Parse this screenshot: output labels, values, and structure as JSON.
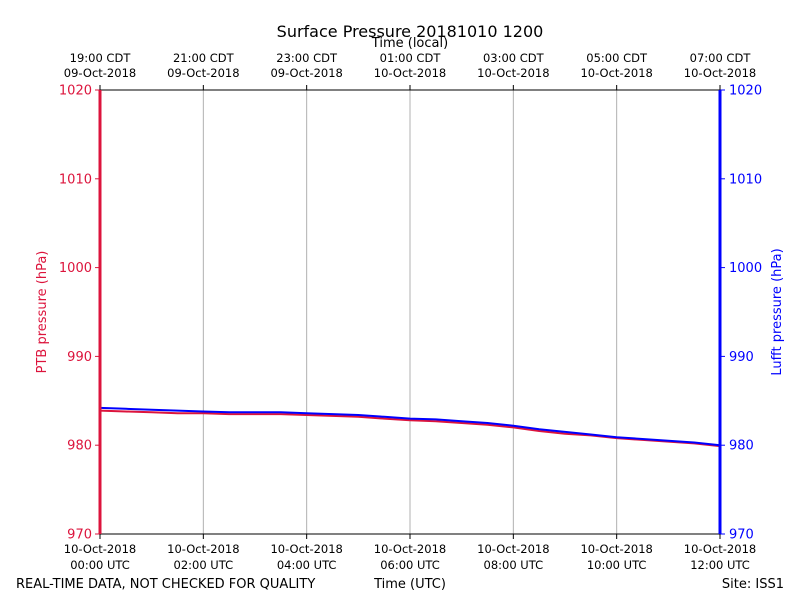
{
  "chart_data": {
    "type": "line",
    "title": "Surface Pressure 20181010 1200",
    "top_axis_label": "Time (local)",
    "xlabel": "Time (UTC)",
    "ylabel_left": "PTB pressure (hPa)",
    "ylabel_right": "Lufft pressure (hPa)",
    "footer_left": "REAL-TIME DATA, NOT CHECKED FOR QUALITY",
    "footer_right": "Site: ISS1",
    "xlim_hours": [
      0,
      12
    ],
    "ylim": [
      970,
      1020
    ],
    "yticks": [
      970,
      980,
      990,
      1000,
      1010,
      1020
    ],
    "grid": "vertical",
    "bottom_ticks": [
      {
        "hour": 0,
        "date": "10-Oct-2018",
        "time": "00:00 UTC"
      },
      {
        "hour": 2,
        "date": "10-Oct-2018",
        "time": "02:00 UTC"
      },
      {
        "hour": 4,
        "date": "10-Oct-2018",
        "time": "04:00 UTC"
      },
      {
        "hour": 6,
        "date": "10-Oct-2018",
        "time": "06:00 UTC"
      },
      {
        "hour": 8,
        "date": "10-Oct-2018",
        "time": "08:00 UTC"
      },
      {
        "hour": 10,
        "date": "10-Oct-2018",
        "time": "10:00 UTC"
      },
      {
        "hour": 12,
        "date": "10-Oct-2018",
        "time": "12:00 UTC"
      }
    ],
    "top_ticks": [
      {
        "hour": 0,
        "time": "19:00 CDT",
        "date": "09-Oct-2018"
      },
      {
        "hour": 2,
        "time": "21:00 CDT",
        "date": "09-Oct-2018"
      },
      {
        "hour": 4,
        "time": "23:00 CDT",
        "date": "09-Oct-2018"
      },
      {
        "hour": 6,
        "time": "01:00 CDT",
        "date": "10-Oct-2018"
      },
      {
        "hour": 8,
        "time": "03:00 CDT",
        "date": "10-Oct-2018"
      },
      {
        "hour": 10,
        "time": "05:00 CDT",
        "date": "10-Oct-2018"
      },
      {
        "hour": 12,
        "time": "07:00 CDT",
        "date": "10-Oct-2018"
      }
    ],
    "series": [
      {
        "name": "PTB pressure (hPa)",
        "color": "#dc143c",
        "axis": "left",
        "x": [
          0,
          0.5,
          1,
          1.5,
          2,
          2.5,
          3,
          3.5,
          4,
          4.5,
          5,
          5.5,
          6,
          6.5,
          7,
          7.5,
          8,
          8.5,
          9,
          9.5,
          10,
          10.5,
          11,
          11.5,
          12
        ],
        "y": [
          983.9,
          983.8,
          983.7,
          983.6,
          983.6,
          983.5,
          983.5,
          983.5,
          983.4,
          983.3,
          983.2,
          983.0,
          982.8,
          982.7,
          982.5,
          982.3,
          982.0,
          981.6,
          981.3,
          981.1,
          980.8,
          980.6,
          980.4,
          980.2,
          979.9
        ]
      },
      {
        "name": "Lufft pressure (hPa)",
        "color": "#0000ff",
        "axis": "right",
        "x": [
          0,
          0.5,
          1,
          1.5,
          2,
          2.5,
          3,
          3.5,
          4,
          4.5,
          5,
          5.5,
          6,
          6.5,
          7,
          7.5,
          8,
          8.5,
          9,
          9.5,
          10,
          10.5,
          11,
          11.5,
          12
        ],
        "y": [
          984.2,
          984.1,
          984.0,
          983.9,
          983.8,
          983.7,
          983.7,
          983.7,
          983.6,
          983.5,
          983.4,
          983.2,
          983.0,
          982.9,
          982.7,
          982.5,
          982.2,
          981.8,
          981.5,
          981.2,
          980.9,
          980.7,
          980.5,
          980.3,
          980.0
        ]
      }
    ],
    "axis_colors": {
      "left": "#dc143c",
      "right": "#0000ff",
      "frame": "#000000",
      "grid": "#b0b0b0"
    }
  }
}
